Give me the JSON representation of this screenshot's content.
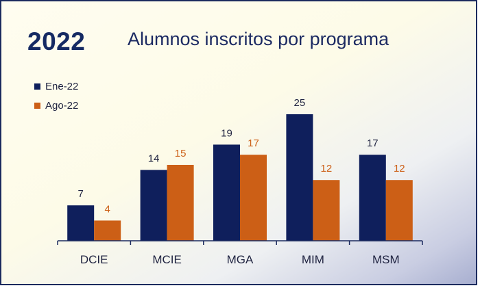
{
  "year": "2022",
  "title": "Alumnos inscritos por programa",
  "colors": {
    "ene": "#0f1f5c",
    "ago": "#cc5f16",
    "axis": "#1b2a5e"
  },
  "chart_data": {
    "type": "bar",
    "title": "Alumnos inscritos por programa",
    "xlabel": "",
    "ylabel": "",
    "ylim": [
      0,
      25
    ],
    "legend_position": "top-left",
    "categories": [
      "DCIE",
      "MCIE",
      "MGA",
      "MIM",
      "MSM"
    ],
    "series": [
      {
        "name": "Ene-22",
        "values": [
          7,
          14,
          19,
          25,
          17
        ]
      },
      {
        "name": "Ago-22",
        "values": [
          4,
          15,
          17,
          12,
          12
        ]
      }
    ]
  }
}
